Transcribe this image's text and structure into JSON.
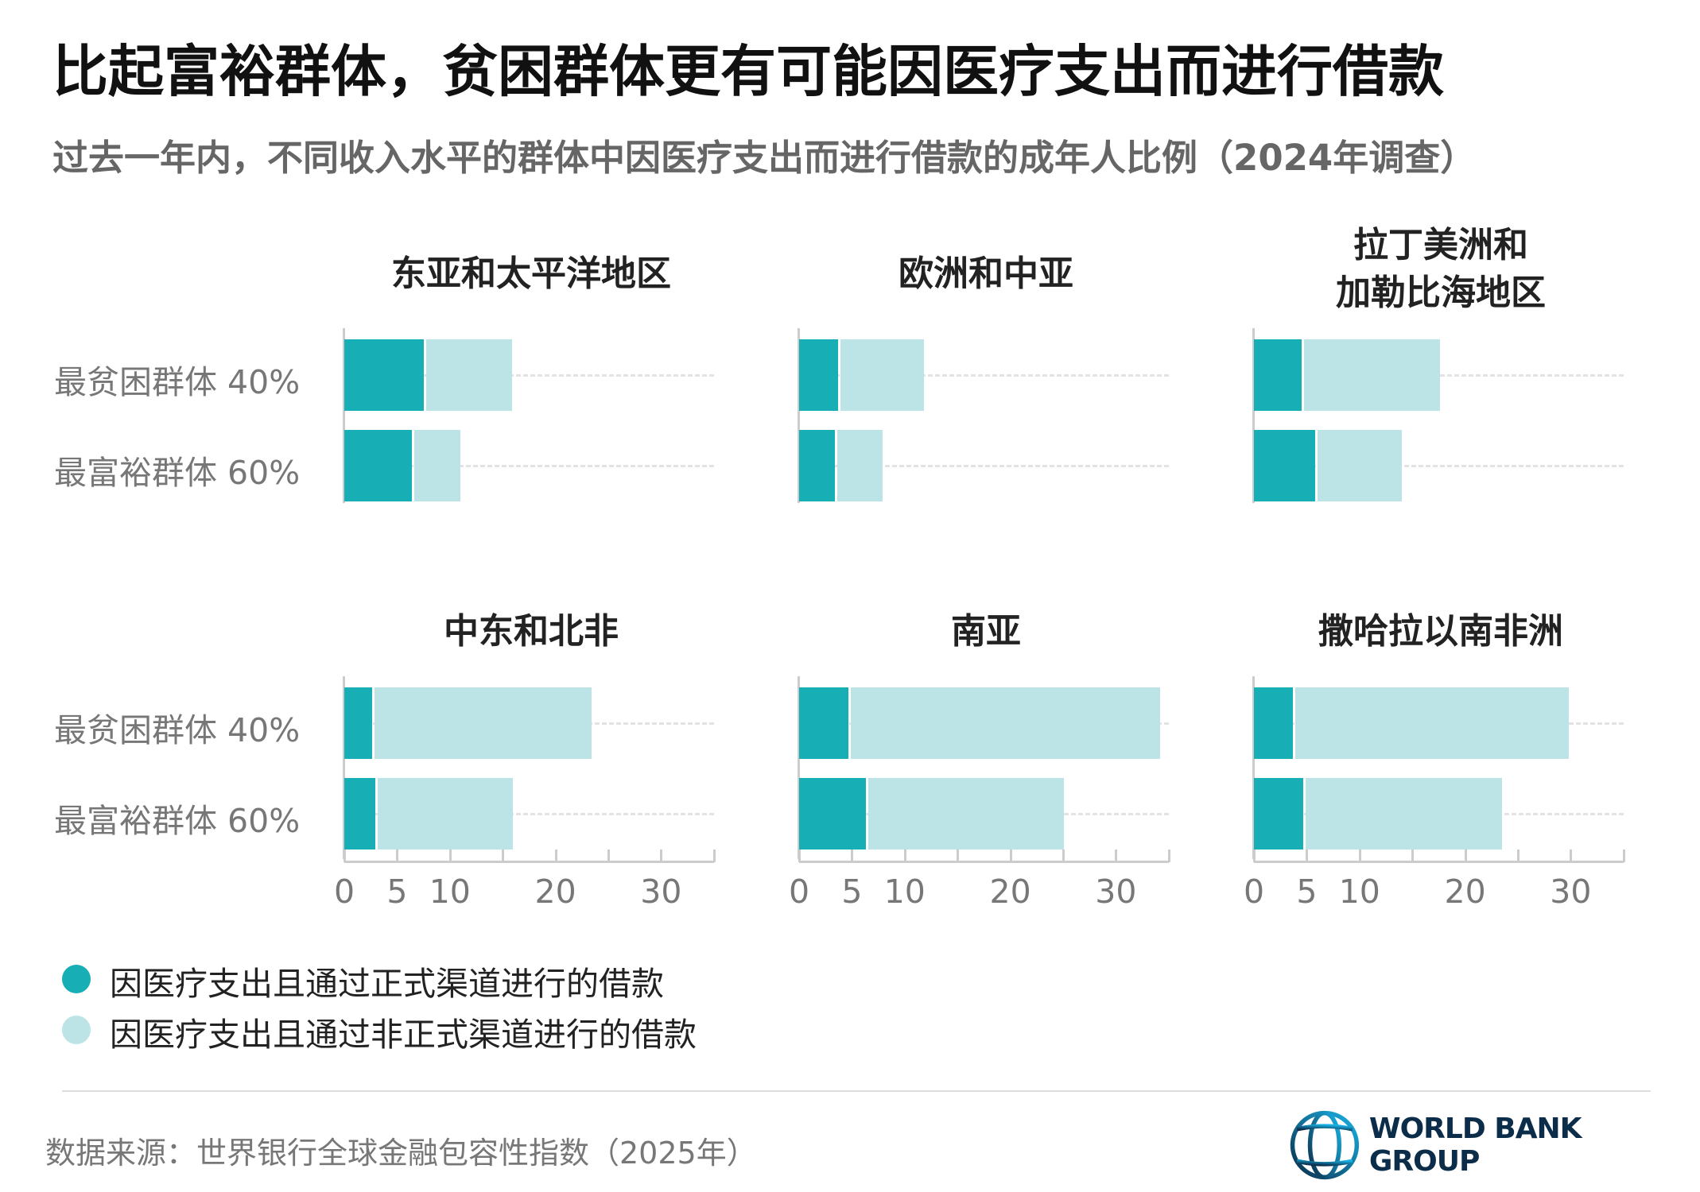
{
  "header": {
    "title": "比起富裕群体，贫困群体更有可能因医疗支出而进行借款",
    "subtitle": "过去一年内，不同收入水平的群体中因医疗支出而进行借款的成年人比例（2024年调查）"
  },
  "colors": {
    "formal": "#18aeb5",
    "informal": "#bce4e6"
  },
  "chart_data": {
    "type": "bar",
    "stacked": true,
    "orientation": "horizontal",
    "categories": [
      "最贫困群体 40%",
      "最富裕群体 60%"
    ],
    "xlim": [
      0,
      35
    ],
    "xticks": [
      0,
      5,
      10,
      20,
      30
    ],
    "legend": [
      "因医疗支出且通过正式渠道进行的借款",
      "因医疗支出且通过非正式渠道进行的借款"
    ],
    "legend_placement": "bottom-left",
    "panels": [
      {
        "title": "东亚和太平洋地区",
        "formal": [
          7.5,
          6.4
        ],
        "informal": [
          8.4,
          4.6
        ]
      },
      {
        "title": "欧洲和中亚",
        "formal": [
          3.7,
          3.4
        ],
        "informal": [
          8.1,
          4.5
        ]
      },
      {
        "title": "拉丁美洲和\n加勒比海地区",
        "formal": [
          4.5,
          5.8
        ],
        "informal": [
          13.1,
          8.2
        ]
      },
      {
        "title": "中东和北非",
        "formal": [
          2.6,
          2.9
        ],
        "informal": [
          20.8,
          13.1
        ]
      },
      {
        "title": "南亚",
        "formal": [
          4.7,
          6.3
        ],
        "informal": [
          29.5,
          18.8
        ]
      },
      {
        "title": "撒哈拉以南非洲",
        "formal": [
          3.7,
          4.7
        ],
        "informal": [
          26.1,
          18.8
        ]
      }
    ]
  },
  "footer": {
    "source": "数据来源：世界银行全球金融包容性指数（2025年）",
    "logo": "WORLD BANK GROUP"
  }
}
